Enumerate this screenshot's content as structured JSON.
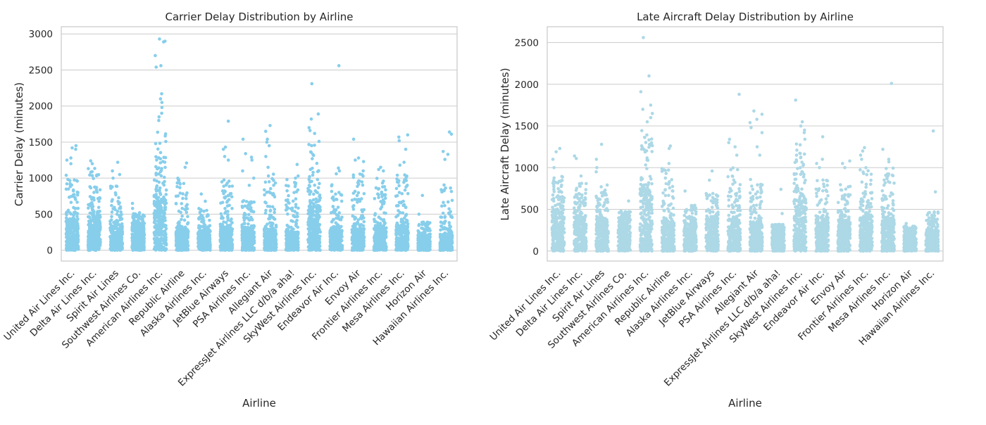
{
  "chart_data": [
    {
      "type": "scatter",
      "variant": "strip",
      "title": "Carrier Delay Distribution by Airline",
      "xlabel": "Airline",
      "ylabel": "Carrier Delay (minutes)",
      "ylim": [
        -150,
        3100
      ],
      "yticks": [
        0,
        500,
        1000,
        1500,
        2000,
        2500,
        3000
      ],
      "ytick_labels": [
        "0",
        "500",
        "1000",
        "1500",
        "2000",
        "2500",
        "3000"
      ],
      "color": "#87ceeb",
      "categories": [
        "United Air Lines Inc.",
        "Delta Air Lines Inc.",
        "Spirit Air Lines",
        "Southwest Airlines Co.",
        "American Airlines Inc.",
        "Republic Airline",
        "Alaska Airlines Inc.",
        "JetBlue Airways",
        "PSA Airlines Inc.",
        "Allegiant Air",
        "ExpressJet Airlines LLC d/b/a aha!",
        "SkyWest Airlines Inc.",
        "Endeavor Air Inc.",
        "Envoy Air",
        "Frontier Airlines Inc.",
        "Mesa Airlines Inc.",
        "Horizon Air",
        "Hawaiian Airlines Inc."
      ],
      "series": [
        {
          "name": "United Air Lines Inc.",
          "dense_max": 420,
          "spread_max": 1050,
          "outliers": [
            1450,
            1420,
            1400,
            1280,
            1250,
            1200
          ]
        },
        {
          "name": "Delta Air Lines Inc.",
          "dense_max": 470,
          "spread_max": 1160,
          "outliers": [
            1240,
            1200
          ]
        },
        {
          "name": "Spirit Air Lines",
          "dense_max": 330,
          "spread_max": 900,
          "outliers": [
            1220,
            1100,
            1050,
            1000
          ]
        },
        {
          "name": "Southwest Airlines Co.",
          "dense_max": 330,
          "spread_max": 530,
          "outliers": [
            650,
            580
          ]
        },
        {
          "name": "American Airlines Inc.",
          "dense_max": 720,
          "spread_max": 1650,
          "outliers": [
            2930,
            2900,
            2890,
            2700,
            2560,
            2540,
            2170,
            2100,
            2050,
            1980,
            1900,
            1850,
            1800
          ]
        },
        {
          "name": "Republic Airline",
          "dense_max": 300,
          "spread_max": 1000,
          "outliers": [
            1210,
            1150
          ]
        },
        {
          "name": "Alaska Airlines Inc.",
          "dense_max": 260,
          "spread_max": 580,
          "outliers": [
            780,
            680
          ]
        },
        {
          "name": "JetBlue Airways",
          "dense_max": 320,
          "spread_max": 1000,
          "outliers": [
            1790,
            1430,
            1400,
            1300,
            1250
          ]
        },
        {
          "name": "PSA Airlines Inc.",
          "dense_max": 300,
          "spread_max": 700,
          "outliers": [
            1540,
            1340,
            1290,
            1250,
            1100,
            1000,
            900
          ]
        },
        {
          "name": "Allegiant Air",
          "dense_max": 300,
          "spread_max": 1080,
          "outliers": [
            1730,
            1650,
            1540,
            1500,
            1450,
            1300,
            1150
          ]
        },
        {
          "name": "ExpressJet Airlines LLC d/b/a aha!",
          "dense_max": 250,
          "spread_max": 980,
          "outliers": [
            1190,
            1030,
            1000,
            800,
            600
          ]
        },
        {
          "name": "SkyWest Airlines Inc.",
          "dense_max": 620,
          "spread_max": 1530,
          "outliers": [
            2310,
            1890,
            1820,
            1700,
            1660,
            1620
          ]
        },
        {
          "name": "Endeavor Air Inc.",
          "dense_max": 300,
          "spread_max": 970,
          "outliers": [
            2560,
            1140,
            1100,
            1060
          ]
        },
        {
          "name": "Envoy Air",
          "dense_max": 300,
          "spread_max": 1060,
          "outliers": [
            1540,
            1280,
            1250,
            1230,
            1100
          ]
        },
        {
          "name": "Frontier Airlines Inc.",
          "dense_max": 320,
          "spread_max": 1000,
          "outliers": [
            1150,
            1120,
            1100
          ]
        },
        {
          "name": "Mesa Airlines Inc.",
          "dense_max": 350,
          "spread_max": 1050,
          "outliers": [
            1600,
            1570,
            1520,
            1400,
            1220,
            1180
          ]
        },
        {
          "name": "Horizon Air",
          "dense_max": 200,
          "spread_max": 400,
          "outliers": [
            760,
            500
          ]
        },
        {
          "name": "Hawaiian Airlines Inc.",
          "dense_max": 220,
          "spread_max": 950,
          "outliers": [
            1640,
            1610,
            1370,
            1330,
            1260
          ]
        }
      ]
    },
    {
      "type": "scatter",
      "variant": "strip",
      "title": "Late Aircraft Delay Distribution by Airline",
      "xlabel": "Airline",
      "ylabel": "Late Aircraft Delay (minutes)",
      "ylim": [
        -120,
        2690
      ],
      "yticks": [
        0,
        500,
        1000,
        1500,
        2000,
        2500
      ],
      "ytick_labels": [
        "0",
        "500",
        "1000",
        "1500",
        "2000",
        "2500"
      ],
      "color": "#add8e6",
      "categories": [
        "United Air Lines Inc.",
        "Delta Air Lines Inc.",
        "Spirit Air Lines",
        "Southwest Airlines Co.",
        "American Airlines Inc.",
        "Republic Airline",
        "Alaska Airlines Inc.",
        "JetBlue Airways",
        "PSA Airlines Inc.",
        "Allegiant Air",
        "ExpressJet Airlines LLC d/b/a aha!",
        "SkyWest Airlines Inc.",
        "Endeavor Air Inc.",
        "Envoy Air",
        "Frontier Airlines Inc.",
        "Mesa Airlines Inc.",
        "Horizon Air",
        "Hawaiian Airlines Inc."
      ],
      "series": [
        {
          "name": "United Air Lines Inc.",
          "dense_max": 480,
          "spread_max": 920,
          "outliers": [
            1230,
            1190,
            1100,
            1000
          ]
        },
        {
          "name": "Delta Air Lines Inc.",
          "dense_max": 420,
          "spread_max": 830,
          "outliers": [
            1140,
            1110,
            900
          ]
        },
        {
          "name": "Spirit Air Lines",
          "dense_max": 380,
          "spread_max": 800,
          "outliers": [
            1280,
            1100,
            1000,
            950
          ]
        },
        {
          "name": "Southwest Airlines Co.",
          "dense_max": 380,
          "spread_max": 480,
          "outliers": [
            600
          ]
        },
        {
          "name": "American Airlines Inc.",
          "dense_max": 700,
          "spread_max": 1500,
          "outliers": [
            2560,
            2100,
            1910,
            1750,
            1700,
            1650,
            1600,
            1550
          ]
        },
        {
          "name": "Republic Airline",
          "dense_max": 350,
          "spread_max": 1000,
          "outliers": [
            1260,
            1230,
            1050
          ]
        },
        {
          "name": "Alaska Airlines Inc.",
          "dense_max": 320,
          "spread_max": 550,
          "outliers": [
            720
          ]
        },
        {
          "name": "JetBlue Airways",
          "dense_max": 380,
          "spread_max": 700,
          "outliers": [
            960,
            850
          ]
        },
        {
          "name": "PSA Airlines Inc.",
          "dense_max": 380,
          "spread_max": 1000,
          "outliers": [
            1880,
            1340,
            1300,
            1250,
            1150
          ]
        },
        {
          "name": "Allegiant Air",
          "dense_max": 350,
          "spread_max": 900,
          "outliers": [
            1680,
            1640,
            1580,
            1540,
            1480,
            1420,
            1250,
            1150
          ]
        },
        {
          "name": "ExpressJet Airlines LLC d/b/a aha!",
          "dense_max": 280,
          "spread_max": 320,
          "outliers": [
            740,
            450
          ]
        },
        {
          "name": "SkyWest Airlines Inc.",
          "dense_max": 600,
          "spread_max": 1350,
          "outliers": [
            1810,
            1550,
            1500,
            1450,
            1420
          ]
        },
        {
          "name": "Endeavor Air Inc.",
          "dense_max": 350,
          "spread_max": 900,
          "outliers": [
            1370,
            1100,
            1050,
            1000
          ]
        },
        {
          "name": "Envoy Air",
          "dense_max": 350,
          "spread_max": 800,
          "outliers": [
            1080,
            1050,
            1000
          ]
        },
        {
          "name": "Frontier Airlines Inc.",
          "dense_max": 400,
          "spread_max": 1000,
          "outliers": [
            1240,
            1200,
            1150,
            1100
          ]
        },
        {
          "name": "Mesa Airlines Inc.",
          "dense_max": 380,
          "spread_max": 1000,
          "outliers": [
            2010,
            1220,
            1100,
            1070
          ]
        },
        {
          "name": "Horizon Air",
          "dense_max": 220,
          "spread_max": 300,
          "outliers": [
            330
          ]
        },
        {
          "name": "Hawaiian Airlines Inc.",
          "dense_max": 250,
          "spread_max": 480,
          "outliers": [
            1440,
            710
          ]
        }
      ]
    }
  ]
}
